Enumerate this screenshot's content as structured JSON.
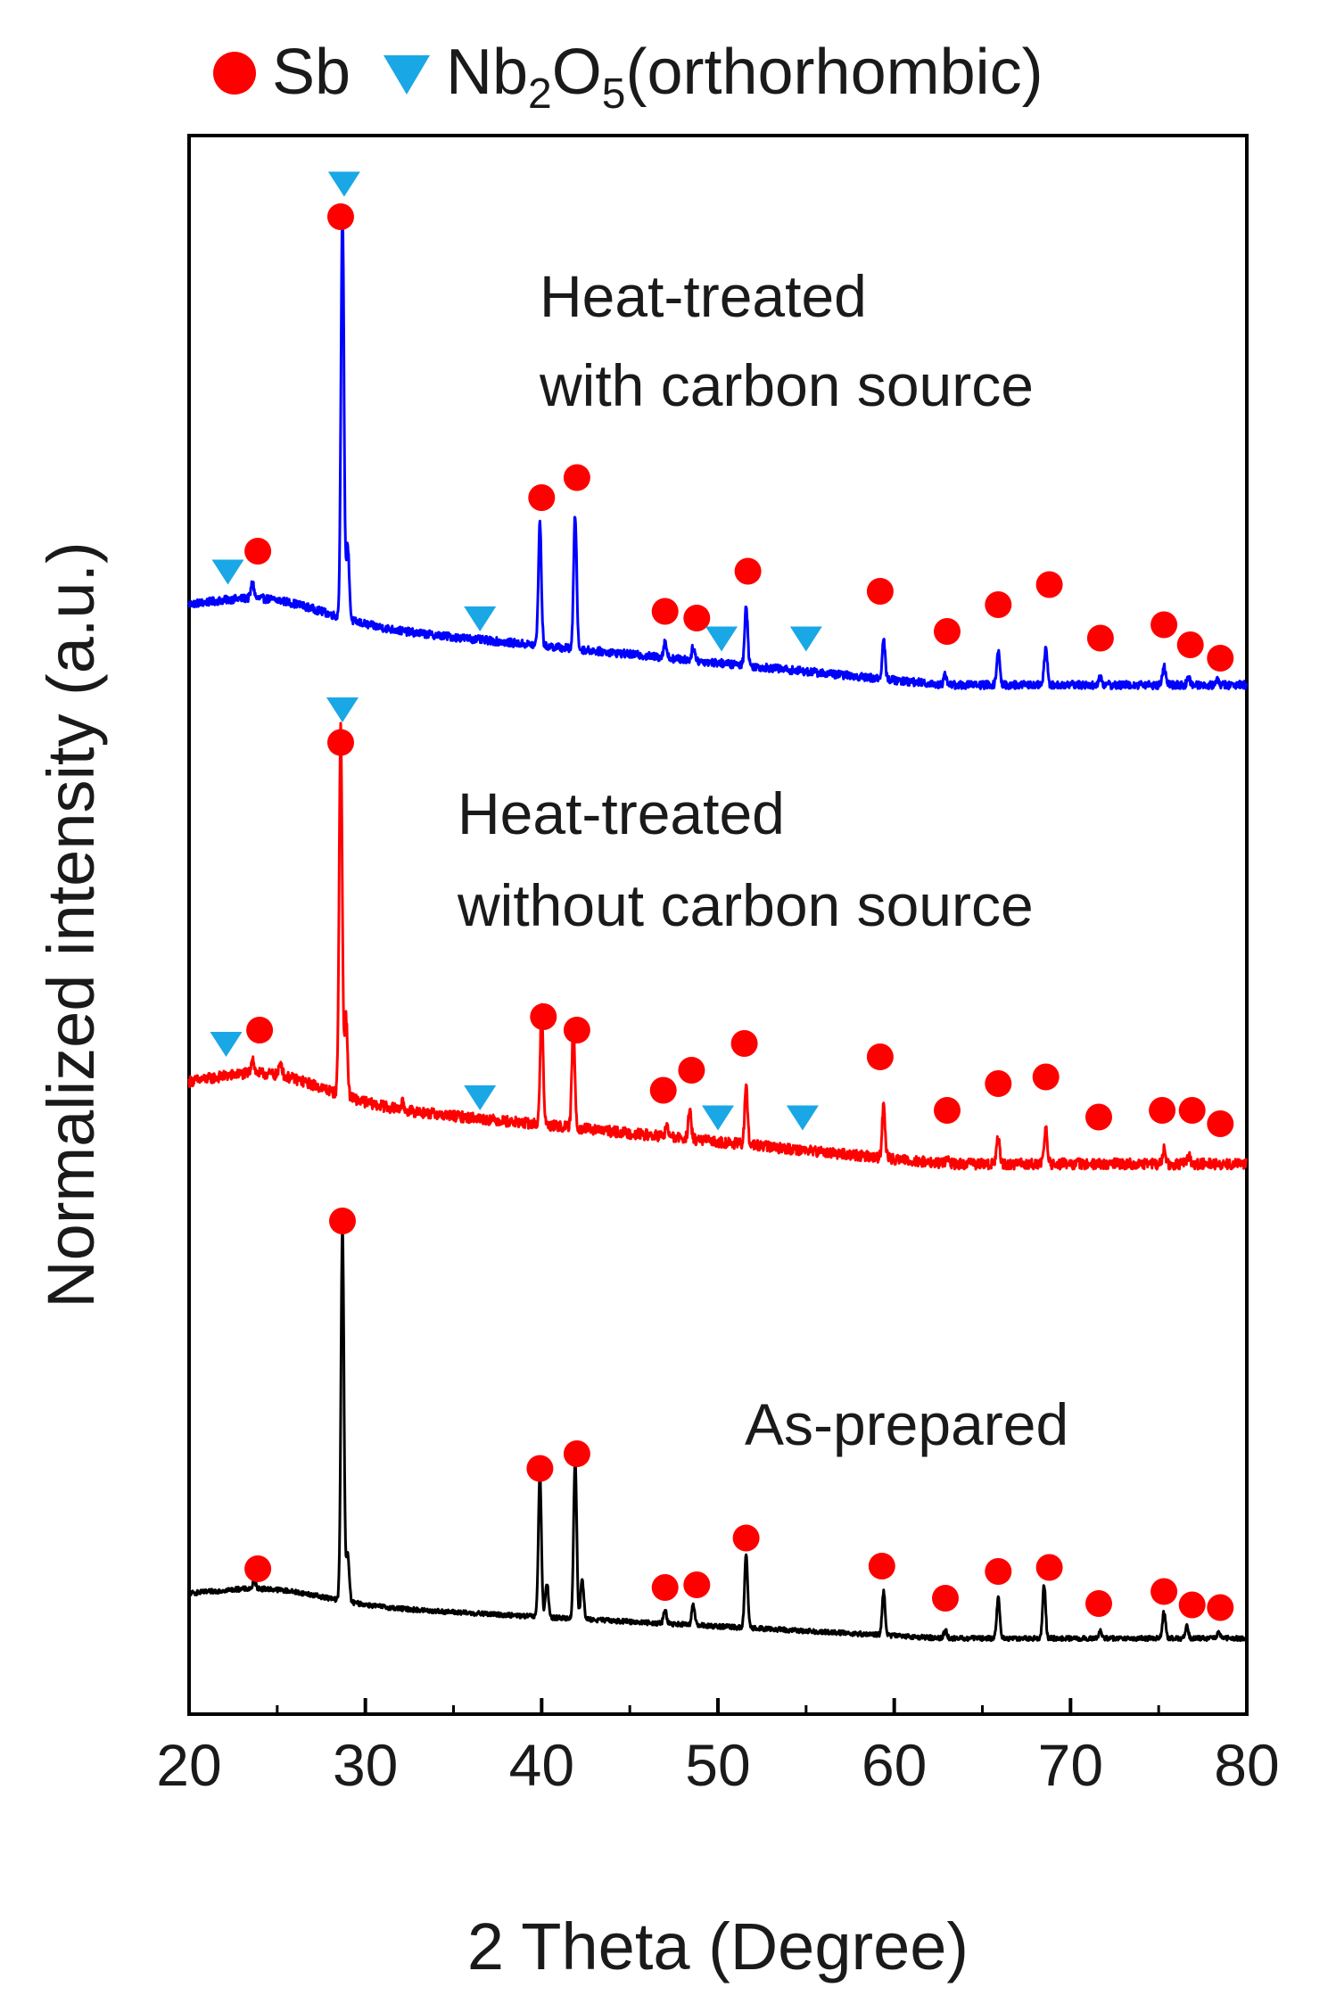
{
  "chart_data": {
    "type": "line",
    "title": "",
    "xlabel": "2 Theta (Degree)",
    "ylabel": "Normalized intensity (a.u.)",
    "xlim": [
      20,
      80
    ],
    "xticks": [
      "20",
      "30",
      "40",
      "50",
      "60",
      "70",
      "80"
    ],
    "yticks": [],
    "legend": {
      "position": "top",
      "entries": [
        {
          "marker": "circle",
          "color": "#ff0000",
          "label": "Sb"
        },
        {
          "marker": "triangle-down",
          "color": "#1aa7e6",
          "label_main": "Nb",
          "sub1": "2",
          "label_mid": "O",
          "sub2": "5",
          "label_tail": "(orthorhombic)"
        }
      ]
    },
    "series": [
      {
        "name": "Heat-treated with carbon source",
        "label_line1": "Heat-treated",
        "label_line2": "with carbon source",
        "color": "#0000ff",
        "baseline_start": 0.55,
        "baseline_end": 0.0,
        "hump_height": 0.15,
        "noise": 0.06,
        "peaks": [
          [
            23.6,
            0.12
          ],
          [
            28.7,
            3.05
          ],
          [
            29.0,
            0.55
          ],
          [
            39.9,
            0.92
          ],
          [
            41.9,
            1.0
          ],
          [
            47.0,
            0.12
          ],
          [
            48.6,
            0.1
          ],
          [
            51.6,
            0.45
          ],
          [
            59.4,
            0.28
          ],
          [
            62.9,
            0.08
          ],
          [
            65.9,
            0.25
          ],
          [
            68.6,
            0.3
          ],
          [
            71.7,
            0.06
          ],
          [
            75.3,
            0.14
          ],
          [
            76.7,
            0.05
          ],
          [
            78.3,
            0.04
          ]
        ],
        "sb_markers": [
          [
            23.9,
            1.0
          ],
          [
            28.6,
            3.5
          ],
          [
            40.0,
            1.4
          ],
          [
            42.0,
            1.55
          ],
          [
            47.0,
            0.55
          ],
          [
            48.8,
            0.5
          ],
          [
            51.7,
            0.85
          ],
          [
            59.2,
            0.7
          ],
          [
            63.0,
            0.4
          ],
          [
            65.9,
            0.6
          ],
          [
            68.8,
            0.75
          ],
          [
            71.7,
            0.35
          ],
          [
            75.3,
            0.45
          ],
          [
            76.8,
            0.3
          ],
          [
            78.5,
            0.2
          ]
        ],
        "nb2o5_markers": [
          [
            22.2,
            0.85
          ],
          [
            28.8,
            3.75
          ],
          [
            36.5,
            0.5
          ],
          [
            50.2,
            0.35
          ],
          [
            55.0,
            0.35
          ]
        ]
      },
      {
        "name": "Heat-treated without carbon source",
        "label_line1": "Heat-treated",
        "label_line2": "without carbon source",
        "color": "#ff0000",
        "baseline_start": 0.55,
        "baseline_end": 0.0,
        "hump_height": 0.18,
        "noise": 0.08,
        "peaks": [
          [
            23.6,
            0.12
          ],
          [
            25.2,
            0.1
          ],
          [
            28.6,
            2.75
          ],
          [
            28.9,
            0.6
          ],
          [
            32.1,
            0.05
          ],
          [
            40.0,
            0.88
          ],
          [
            41.8,
            0.75
          ],
          [
            47.1,
            0.08
          ],
          [
            48.4,
            0.2
          ],
          [
            51.6,
            0.42
          ],
          [
            59.4,
            0.38
          ],
          [
            63.0,
            0.06
          ],
          [
            65.9,
            0.2
          ],
          [
            68.6,
            0.25
          ],
          [
            75.3,
            0.12
          ],
          [
            76.7,
            0.06
          ]
        ],
        "sb_markers": [
          [
            24.0,
            1.0
          ],
          [
            28.6,
            3.15
          ],
          [
            40.1,
            1.1
          ],
          [
            42.0,
            1.0
          ],
          [
            46.9,
            0.55
          ],
          [
            48.5,
            0.7
          ],
          [
            51.5,
            0.9
          ],
          [
            59.2,
            0.8
          ],
          [
            63.0,
            0.4
          ],
          [
            65.9,
            0.6
          ],
          [
            68.6,
            0.65
          ],
          [
            71.6,
            0.35
          ],
          [
            75.2,
            0.4
          ],
          [
            76.9,
            0.4
          ],
          [
            78.5,
            0.3
          ]
        ],
        "nb2o5_markers": [
          [
            22.1,
            0.9
          ],
          [
            28.7,
            3.4
          ],
          [
            36.5,
            0.5
          ],
          [
            50.0,
            0.35
          ],
          [
            54.8,
            0.35
          ]
        ]
      },
      {
        "name": "As-prepared",
        "label_line1": "As-prepared",
        "label_line2": "",
        "color": "#000000",
        "baseline_start": 0.3,
        "baseline_end": 0.0,
        "hump_height": 0.1,
        "noise": 0.035,
        "peaks": [
          [
            23.7,
            0.06
          ],
          [
            28.7,
            2.8
          ],
          [
            29.0,
            0.35
          ],
          [
            39.9,
            1.08
          ],
          [
            40.3,
            0.25
          ],
          [
            41.9,
            1.2
          ],
          [
            42.3,
            0.3
          ],
          [
            47.0,
            0.1
          ],
          [
            48.6,
            0.15
          ],
          [
            51.6,
            0.55
          ],
          [
            59.4,
            0.32
          ],
          [
            62.9,
            0.06
          ],
          [
            65.9,
            0.3
          ],
          [
            68.5,
            0.4
          ],
          [
            71.7,
            0.05
          ],
          [
            75.3,
            0.2
          ],
          [
            76.6,
            0.09
          ],
          [
            78.4,
            0.04
          ]
        ],
        "sb_markers": [
          [
            23.9,
            0.52
          ],
          [
            28.7,
            3.12
          ],
          [
            39.9,
            1.27
          ],
          [
            42.0,
            1.38
          ],
          [
            47.0,
            0.38
          ],
          [
            48.8,
            0.4
          ],
          [
            51.6,
            0.75
          ],
          [
            59.3,
            0.54
          ],
          [
            62.9,
            0.3
          ],
          [
            65.9,
            0.5
          ],
          [
            68.8,
            0.53
          ],
          [
            71.6,
            0.26
          ],
          [
            75.3,
            0.35
          ],
          [
            76.9,
            0.25
          ],
          [
            78.5,
            0.23
          ]
        ],
        "nb2o5_markers": []
      }
    ]
  }
}
